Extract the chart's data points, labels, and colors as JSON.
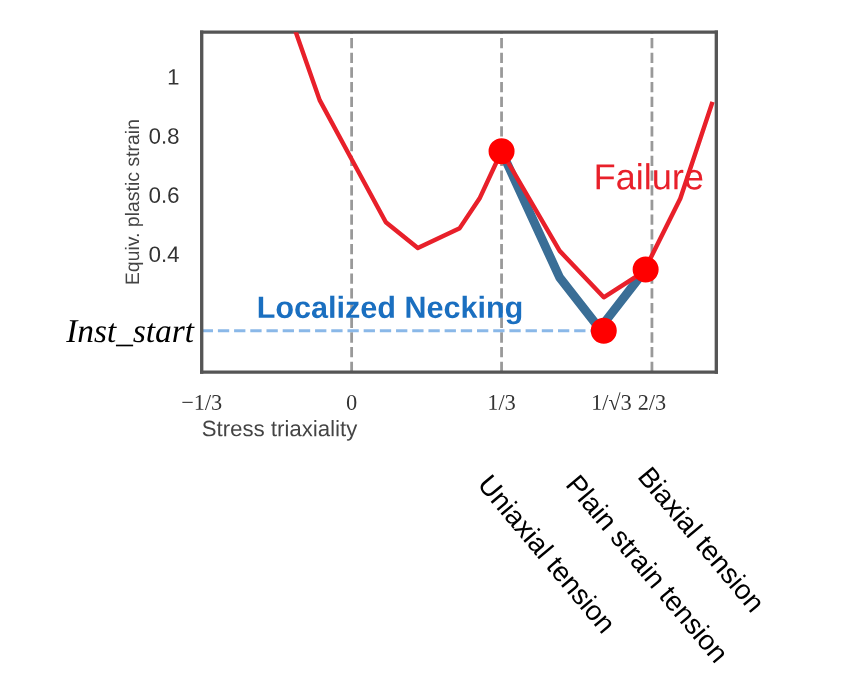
{
  "chart_data": {
    "type": "line",
    "xlabel": "Stress triaxiality",
    "ylabel": "Equiv. plastic strain",
    "xlim": [
      -0.333,
      0.81
    ],
    "ylim": [
      0,
      1.15
    ],
    "xticks": [
      {
        "value": -0.333,
        "label": "−1/3"
      },
      0,
      {
        "value": 0.333,
        "label": "1/3"
      },
      {
        "value": 0.577,
        "label": "1/√3"
      },
      {
        "value": 0.667,
        "label": "2/3"
      }
    ],
    "yticks": [
      0.4,
      0.6,
      0.8,
      1
    ],
    "grid": false,
    "series": [
      {
        "color": "#e8202a",
        "x": [
          -0.124,
          -0.071,
          0,
          0.076,
          0.147,
          0.24,
          0.284,
          0.333,
          0.462,
          0.56,
          0.649,
          0.73,
          0.8
        ],
        "values": [
          1.15,
          0.92,
          0.72,
          0.507,
          0.42,
          0.487,
          0.587,
          0.747,
          0.41,
          0.253,
          0.34,
          0.587,
          0.907
        ]
      },
      {
        "color": "#3a6e96",
        "x": [
          0.333,
          0.462,
          0.551,
          0.653
        ],
        "values": [
          0.747,
          0.32,
          0.147,
          0.347
        ]
      },
      {
        "color": "#8ab8e8",
        "line_style": "dashed",
        "x": [
          -0.333,
          0.56
        ],
        "values": [
          0.14,
          0.14
        ]
      },
      {
        "type": "scatter",
        "color": "#ff0000",
        "x": [
          0.333,
          0.56,
          0.653
        ],
        "values": [
          0.747,
          0.14,
          0.347
        ]
      }
    ],
    "ref_lines": [
      {
        "axis": "x",
        "value": 0,
        "color": "#999999",
        "line_style": "dashed"
      },
      {
        "axis": "x",
        "value": 0.333,
        "color": "#999999",
        "line_style": "dashed"
      },
      {
        "axis": "x",
        "value": 0.667,
        "color": "#999999",
        "line_style": "dashed"
      }
    ],
    "annotations": [
      {
        "text": "Failure",
        "x": 0.66,
        "y": 0.65
      },
      "Localized Necking",
      "Inst_start",
      "Uniaxial tension",
      "Plain strain tension",
      "Biaxial tension"
    ]
  }
}
